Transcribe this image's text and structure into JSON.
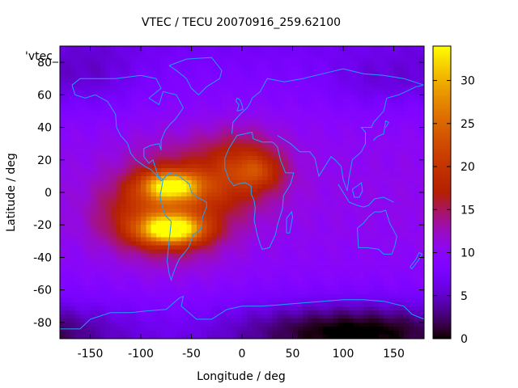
{
  "chart_data": {
    "type": "heatmap",
    "title": "VTEC / TECU 20070916_259.62100",
    "xlabel": "Longitude / deg",
    "ylabel": "Latitude / deg",
    "legend_key": "'vtec_",
    "xlim": [
      -180,
      180
    ],
    "ylim": [
      -90,
      90
    ],
    "xticks": [
      -150,
      -100,
      -50,
      0,
      50,
      100,
      150
    ],
    "yticks": [
      -80,
      -60,
      -40,
      -20,
      0,
      20,
      40,
      60,
      80
    ],
    "colorbar": {
      "range": [
        0,
        34
      ],
      "ticks": [
        0,
        5,
        10,
        15,
        20,
        25,
        30
      ]
    },
    "grid": false,
    "background_level": 10.5,
    "features": [
      {
        "name": "south-american-anomaly-crest",
        "lon": -70,
        "lat": -23,
        "sigma_lon": 22,
        "sigma_lat": 6,
        "peak": 20
      },
      {
        "name": "equatorial-crest-north",
        "lon": -70,
        "lat": 4,
        "sigma_lon": 20,
        "sigma_lat": 6,
        "peak": 17
      },
      {
        "name": "south-america-main",
        "lon": -65,
        "lat": -8,
        "sigma_lon": 38,
        "sigma_lat": 22,
        "peak": 10
      },
      {
        "name": "atlantic-africa-bulge",
        "lon": 0,
        "lat": 15,
        "sigma_lon": 30,
        "sigma_lat": 16,
        "peak": 8
      },
      {
        "name": "west-africa-crest",
        "lon": 15,
        "lat": 13,
        "sigma_lon": 16,
        "sigma_lat": 7,
        "peak": 5
      },
      {
        "name": "south-pacific-plume",
        "lon": -110,
        "lat": -15,
        "sigma_lon": 30,
        "sigma_lat": 15,
        "peak": 4
      },
      {
        "name": "antarctic-low",
        "lon": 110,
        "lat": -85,
        "sigma_lon": 80,
        "sigma_lat": 12,
        "peak": -8
      },
      {
        "name": "north-pacific-low",
        "lon": -150,
        "lat": 72,
        "sigma_lon": 35,
        "sigma_lat": 15,
        "peak": -3
      },
      {
        "name": "north-asia-low",
        "lon": 130,
        "lat": 68,
        "sigma_lon": 35,
        "sigma_lat": 12,
        "peak": -2.5
      }
    ],
    "coastlines": [
      {
        "name": "north-america",
        "points": [
          [
            -168,
            66
          ],
          [
            -160,
            70
          ],
          [
            -140,
            70
          ],
          [
            -125,
            70
          ],
          [
            -100,
            72
          ],
          [
            -85,
            70
          ],
          [
            -80,
            64
          ],
          [
            -92,
            58
          ],
          [
            -82,
            54
          ],
          [
            -78,
            62
          ],
          [
            -65,
            60
          ],
          [
            -58,
            52
          ],
          [
            -66,
            45
          ],
          [
            -71,
            42
          ],
          [
            -76,
            38
          ],
          [
            -80,
            32
          ],
          [
            -80,
            26
          ],
          [
            -82,
            30
          ],
          [
            -90,
            29
          ],
          [
            -97,
            27
          ],
          [
            -97,
            22
          ],
          [
            -92,
            18
          ],
          [
            -88,
            20
          ],
          [
            -86,
            16
          ],
          [
            -83,
            10
          ],
          [
            -78,
            8
          ],
          [
            -80,
            7
          ],
          [
            -85,
            11
          ],
          [
            -90,
            14
          ],
          [
            -96,
            16
          ],
          [
            -105,
            20
          ],
          [
            -110,
            24
          ],
          [
            -113,
            30
          ],
          [
            -117,
            33
          ],
          [
            -120,
            35
          ],
          [
            -124,
            40
          ],
          [
            -125,
            48
          ],
          [
            -133,
            56
          ],
          [
            -145,
            60
          ],
          [
            -155,
            58
          ],
          [
            -165,
            60
          ],
          [
            -168,
            66
          ]
        ]
      },
      {
        "name": "south-america",
        "points": [
          [
            -78,
            8
          ],
          [
            -72,
            12
          ],
          [
            -62,
            10
          ],
          [
            -52,
            5
          ],
          [
            -50,
            0
          ],
          [
            -44,
            -3
          ],
          [
            -35,
            -6
          ],
          [
            -35,
            -9
          ],
          [
            -39,
            -15
          ],
          [
            -40,
            -22
          ],
          [
            -48,
            -26
          ],
          [
            -53,
            -34
          ],
          [
            -58,
            -38
          ],
          [
            -62,
            -41
          ],
          [
            -65,
            -45
          ],
          [
            -68,
            -50
          ],
          [
            -70,
            -54
          ],
          [
            -72,
            -50
          ],
          [
            -74,
            -42
          ],
          [
            -72,
            -30
          ],
          [
            -70,
            -18
          ],
          [
            -76,
            -14
          ],
          [
            -80,
            -6
          ],
          [
            -81,
            -2
          ],
          [
            -80,
            1
          ],
          [
            -78,
            8
          ]
        ]
      },
      {
        "name": "africa",
        "points": [
          [
            -17,
            15
          ],
          [
            -17,
            21
          ],
          [
            -13,
            27
          ],
          [
            -10,
            30
          ],
          [
            -5,
            35
          ],
          [
            10,
            37
          ],
          [
            11,
            33
          ],
          [
            20,
            31
          ],
          [
            30,
            31
          ],
          [
            32,
            30
          ],
          [
            35,
            28
          ],
          [
            38,
            20
          ],
          [
            43,
            12
          ],
          [
            51,
            12
          ],
          [
            48,
            5
          ],
          [
            41,
            -2
          ],
          [
            40,
            -10
          ],
          [
            35,
            -20
          ],
          [
            33,
            -26
          ],
          [
            27,
            -34
          ],
          [
            20,
            -35
          ],
          [
            18,
            -32
          ],
          [
            15,
            -26
          ],
          [
            12,
            -17
          ],
          [
            13,
            -10
          ],
          [
            12,
            -5
          ],
          [
            9,
            -1
          ],
          [
            9,
            4
          ],
          [
            3,
            6
          ],
          [
            -5,
            5
          ],
          [
            -8,
            4
          ],
          [
            -13,
            8
          ],
          [
            -17,
            15
          ]
        ]
      },
      {
        "name": "eurasia",
        "points": [
          [
            -10,
            36
          ],
          [
            -9,
            43
          ],
          [
            -2,
            48
          ],
          [
            5,
            52
          ],
          [
            8,
            55
          ],
          [
            10,
            58
          ],
          [
            18,
            62
          ],
          [
            25,
            70
          ],
          [
            42,
            68
          ],
          [
            60,
            70
          ],
          [
            80,
            73
          ],
          [
            100,
            76
          ],
          [
            120,
            73
          ],
          [
            140,
            72
          ],
          [
            160,
            70
          ],
          [
            175,
            67
          ],
          [
            180,
            66
          ]
        ]
      },
      {
        "name": "south-asia",
        "points": [
          [
            35,
            35
          ],
          [
            48,
            30
          ],
          [
            57,
            25
          ],
          [
            67,
            25
          ],
          [
            72,
            21
          ],
          [
            76,
            10
          ],
          [
            80,
            14
          ],
          [
            88,
            22
          ],
          [
            92,
            20
          ],
          [
            98,
            16
          ],
          [
            100,
            8
          ],
          [
            104,
            1
          ],
          [
            106,
            10
          ],
          [
            109,
            20
          ],
          [
            118,
            25
          ],
          [
            122,
            30
          ],
          [
            122,
            37
          ],
          [
            118,
            40
          ],
          [
            128,
            40
          ],
          [
            130,
            43
          ],
          [
            140,
            50
          ],
          [
            143,
            58
          ],
          [
            155,
            60
          ],
          [
            162,
            62
          ],
          [
            172,
            65
          ],
          [
            180,
            66
          ]
        ]
      },
      {
        "name": "australia",
        "points": [
          [
            114,
            -22
          ],
          [
            115,
            -34
          ],
          [
            124,
            -34
          ],
          [
            135,
            -35
          ],
          [
            140,
            -38
          ],
          [
            148,
            -38
          ],
          [
            151,
            -33
          ],
          [
            153,
            -27
          ],
          [
            146,
            -19
          ],
          [
            142,
            -11
          ],
          [
            137,
            -12
          ],
          [
            131,
            -12
          ],
          [
            125,
            -15
          ],
          [
            120,
            -19
          ],
          [
            114,
            -22
          ]
        ]
      },
      {
        "name": "greenland",
        "points": [
          [
            -72,
            78
          ],
          [
            -55,
            82
          ],
          [
            -30,
            83
          ],
          [
            -20,
            75
          ],
          [
            -22,
            70
          ],
          [
            -35,
            65
          ],
          [
            -43,
            60
          ],
          [
            -50,
            64
          ],
          [
            -55,
            70
          ],
          [
            -65,
            75
          ],
          [
            -72,
            78
          ]
        ]
      },
      {
        "name": "antarctica",
        "points": [
          [
            -180,
            -84
          ],
          [
            -160,
            -84
          ],
          [
            -150,
            -78
          ],
          [
            -130,
            -74
          ],
          [
            -110,
            -74
          ],
          [
            -95,
            -73
          ],
          [
            -75,
            -72
          ],
          [
            -62,
            -65
          ],
          [
            -58,
            -64
          ],
          [
            -60,
            -70
          ],
          [
            -45,
            -78
          ],
          [
            -30,
            -78
          ],
          [
            -15,
            -72
          ],
          [
            0,
            -70
          ],
          [
            20,
            -70
          ],
          [
            40,
            -69
          ],
          [
            60,
            -68
          ],
          [
            80,
            -67
          ],
          [
            100,
            -66
          ],
          [
            120,
            -66
          ],
          [
            140,
            -67
          ],
          [
            160,
            -70
          ],
          [
            168,
            -75
          ],
          [
            180,
            -78
          ]
        ]
      },
      {
        "name": "japan",
        "points": [
          [
            130,
            32
          ],
          [
            133,
            34
          ],
          [
            136,
            35
          ],
          [
            140,
            36
          ],
          [
            141,
            40
          ],
          [
            142,
            44
          ],
          [
            145,
            43
          ],
          [
            142,
            40
          ]
        ]
      },
      {
        "name": "madagascar",
        "points": [
          [
            44,
            -25
          ],
          [
            47,
            -25
          ],
          [
            50,
            -15
          ],
          [
            49,
            -12
          ],
          [
            44,
            -16
          ],
          [
            44,
            -25
          ]
        ]
      },
      {
        "name": "britain",
        "points": [
          [
            -5,
            50
          ],
          [
            1,
            51
          ],
          [
            0,
            54
          ],
          [
            -2,
            57
          ],
          [
            -5,
            58
          ],
          [
            -6,
            56
          ],
          [
            -3,
            54
          ],
          [
            -5,
            50
          ]
        ]
      },
      {
        "name": "new-zealand",
        "points": [
          [
            166,
            -46
          ],
          [
            172,
            -41
          ],
          [
            175,
            -37
          ],
          [
            178,
            -38
          ],
          [
            174,
            -42
          ],
          [
            168,
            -47
          ],
          [
            166,
            -46
          ]
        ]
      },
      {
        "name": "indonesia",
        "points": [
          [
            95,
            5
          ],
          [
            100,
            0
          ],
          [
            106,
            -6
          ],
          [
            114,
            -8
          ],
          [
            120,
            -9
          ],
          [
            125,
            -8
          ],
          [
            131,
            -4
          ],
          [
            140,
            -3
          ],
          [
            150,
            -6
          ]
        ]
      },
      {
        "name": "borneo",
        "points": [
          [
            109,
            2
          ],
          [
            114,
            4
          ],
          [
            118,
            6
          ],
          [
            119,
            1
          ],
          [
            116,
            -3
          ],
          [
            111,
            -3
          ],
          [
            109,
            2
          ]
        ]
      }
    ]
  }
}
